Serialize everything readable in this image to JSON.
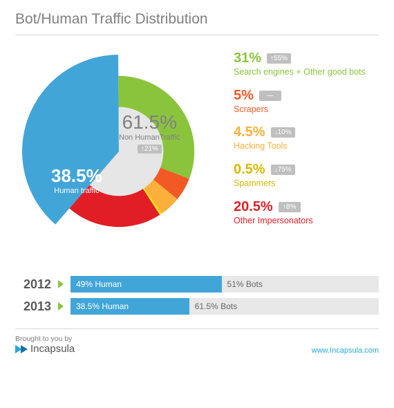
{
  "title": "Bot/Human Traffic Distribution",
  "donut": {
    "slices": [
      {
        "key": "human",
        "value": 38.5,
        "color": "#42a5d8"
      },
      {
        "key": "search_good",
        "value": 31.0,
        "color": "#8ac43d"
      },
      {
        "key": "scrapers",
        "value": 5.0,
        "color": "#f15a24"
      },
      {
        "key": "hacking",
        "value": 4.5,
        "color": "#fbb03b"
      },
      {
        "key": "spammers",
        "value": 0.5,
        "color": "#ffde17"
      },
      {
        "key": "impersonators",
        "value": 20.5,
        "color": "#e11e26"
      }
    ],
    "inner_label": {
      "pct": "61.5%",
      "text": "Non HumanTraffic",
      "change": "↑21%"
    },
    "human_label": {
      "pct": "38.5%",
      "text": "Human traffic"
    }
  },
  "legend": [
    {
      "pct": "31%",
      "change": "↑55%",
      "name": "Search engines + Other good bots",
      "color_class": "c-green"
    },
    {
      "pct": "5%",
      "change": "—",
      "name": "Scrapers",
      "color_class": "c-orange"
    },
    {
      "pct": "4.5%",
      "change": "↓10%",
      "name": "Hacking Tools",
      "color_class": "c-amber"
    },
    {
      "pct": "0.5%",
      "change": "↓75%",
      "name": "Spammers",
      "color_class": "c-yellow"
    },
    {
      "pct": "20.5%",
      "change": "↑8%",
      "name": "Other Impersonators",
      "color_class": "c-red"
    }
  ],
  "bars": [
    {
      "year": "2012",
      "human_pct": 49,
      "human_label": "49% Human",
      "bots_label": "51% Bots"
    },
    {
      "year": "2013",
      "human_pct": 38.5,
      "human_label": "38.5% Human",
      "bots_label": "61.5% Bots"
    }
  ],
  "footer": {
    "brought": "Brought to you by",
    "brand": "Incapsula",
    "url": "www.Incapsula.com"
  }
}
